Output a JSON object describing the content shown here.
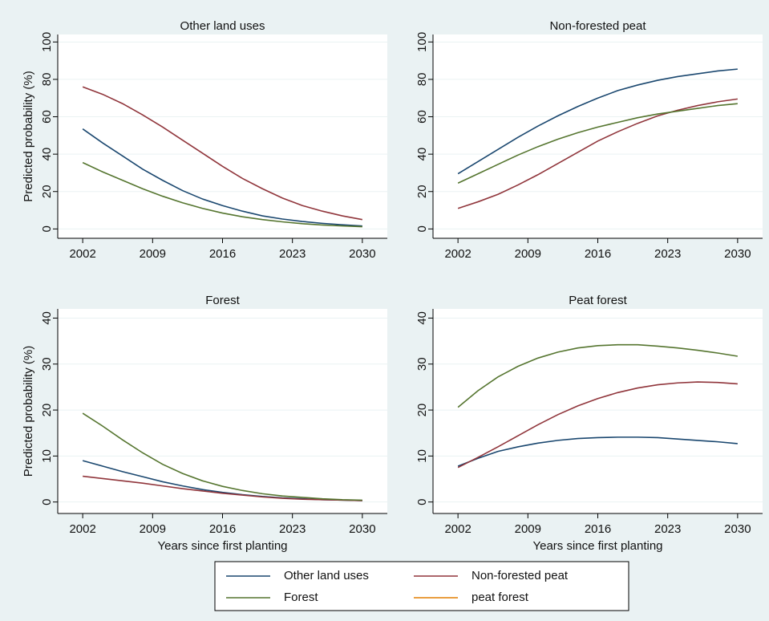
{
  "legend": [
    {
      "name": "Other land uses",
      "color": "#1a476f"
    },
    {
      "name": "Non-forested peat",
      "color": "#90353b"
    },
    {
      "name": "Forest",
      "color": "#55752f"
    },
    {
      "name": "peat forest",
      "color": "#e37e00"
    }
  ],
  "chart_data": [
    {
      "type": "line",
      "title": "Other land uses",
      "y_label": "Predicted probability (%)",
      "x": [
        2002,
        2004,
        2006,
        2008,
        2010,
        2012,
        2014,
        2016,
        2018,
        2020,
        2022,
        2024,
        2026,
        2028,
        2030
      ],
      "xlim": [
        1999.5,
        2032.5
      ],
      "xticks": [
        2002,
        2009,
        2016,
        2023,
        2030
      ],
      "ylim": [
        -5,
        104
      ],
      "yticks": [
        0,
        20,
        40,
        60,
        80,
        100
      ],
      "grid": true,
      "series": [
        {
          "name": "Other land uses",
          "values": [
            53.5,
            46,
            39,
            32,
            26,
            20.5,
            16,
            12.5,
            9.5,
            7,
            5.3,
            4,
            3,
            2.2,
            1.6
          ]
        },
        {
          "name": "Non-forested peat",
          "values": [
            76,
            72,
            67,
            61,
            54.5,
            47.5,
            40.5,
            33.5,
            27,
            21.5,
            16.5,
            12.5,
            9.5,
            7,
            5
          ]
        },
        {
          "name": "Forest",
          "values": [
            35.5,
            30.5,
            26,
            21.5,
            17.5,
            14,
            11,
            8.5,
            6.5,
            5,
            3.8,
            2.8,
            2.1,
            1.6,
            1.2
          ]
        }
      ]
    },
    {
      "type": "line",
      "title": "Non-forested peat",
      "x": [
        2002,
        2004,
        2006,
        2008,
        2010,
        2012,
        2014,
        2016,
        2018,
        2020,
        2022,
        2024,
        2026,
        2028,
        2030
      ],
      "xlim": [
        1999.5,
        2032.5
      ],
      "xticks": [
        2002,
        2009,
        2016,
        2023,
        2030
      ],
      "ylim": [
        -5,
        104
      ],
      "yticks": [
        0,
        20,
        40,
        60,
        80,
        100
      ],
      "grid": true,
      "series": [
        {
          "name": "Other land uses",
          "values": [
            29.5,
            36,
            42.5,
            49,
            55,
            60.5,
            65.5,
            70,
            74,
            77,
            79.5,
            81.5,
            83,
            84.5,
            85.5
          ]
        },
        {
          "name": "Non-forested peat",
          "values": [
            11,
            14.5,
            18.5,
            23.5,
            29,
            35,
            41,
            47,
            52,
            56.5,
            60.5,
            63.5,
            66,
            68,
            69.5
          ]
        },
        {
          "name": "Forest",
          "values": [
            24.5,
            29.5,
            34.5,
            39.5,
            44,
            48,
            51.5,
            54.5,
            57,
            59.5,
            61.5,
            63,
            64.5,
            66,
            67
          ]
        }
      ]
    },
    {
      "type": "line",
      "title": "Forest",
      "y_label": "Predicted probability (%)",
      "x_label": "Years since first planting",
      "x": [
        2002,
        2004,
        2006,
        2008,
        2010,
        2012,
        2014,
        2016,
        2018,
        2020,
        2022,
        2024,
        2026,
        2028,
        2030
      ],
      "xlim": [
        1999.5,
        2032.5
      ],
      "xticks": [
        2002,
        2009,
        2016,
        2023,
        2030
      ],
      "ylim": [
        -2.5,
        42
      ],
      "yticks": [
        0,
        10,
        20,
        30,
        40
      ],
      "grid": true,
      "series": [
        {
          "name": "Other land uses",
          "values": [
            9,
            7.8,
            6.6,
            5.5,
            4.4,
            3.5,
            2.7,
            2.1,
            1.6,
            1.2,
            0.9,
            0.7,
            0.5,
            0.4,
            0.3
          ]
        },
        {
          "name": "Non-forested peat",
          "values": [
            5.6,
            5.1,
            4.6,
            4.1,
            3.5,
            2.9,
            2.4,
            1.9,
            1.5,
            1.1,
            0.8,
            0.6,
            0.5,
            0.4,
            0.3
          ]
        },
        {
          "name": "Forest",
          "values": [
            19.3,
            16.5,
            13.5,
            10.7,
            8.2,
            6.2,
            4.6,
            3.4,
            2.5,
            1.8,
            1.3,
            1,
            0.7,
            0.5,
            0.4
          ]
        }
      ]
    },
    {
      "type": "line",
      "title": "Peat forest",
      "x_label": "Years since first planting",
      "x": [
        2002,
        2004,
        2006,
        2008,
        2010,
        2012,
        2014,
        2016,
        2018,
        2020,
        2022,
        2024,
        2026,
        2028,
        2030
      ],
      "xlim": [
        1999.5,
        2032.5
      ],
      "xticks": [
        2002,
        2009,
        2016,
        2023,
        2030
      ],
      "ylim": [
        -2.5,
        42
      ],
      "yticks": [
        0,
        10,
        20,
        30,
        40
      ],
      "grid": true,
      "series": [
        {
          "name": "Other land uses",
          "values": [
            7.8,
            9.5,
            11,
            12,
            12.8,
            13.4,
            13.8,
            14,
            14.1,
            14.1,
            14,
            13.7,
            13.4,
            13.1,
            12.7
          ]
        },
        {
          "name": "Non-forested peat",
          "values": [
            7.5,
            9.7,
            12,
            14.4,
            16.8,
            19,
            20.9,
            22.5,
            23.8,
            24.8,
            25.5,
            25.9,
            26.1,
            26,
            25.7
          ]
        },
        {
          "name": "Forest",
          "values": [
            20.6,
            24.2,
            27.2,
            29.5,
            31.3,
            32.6,
            33.5,
            34,
            34.2,
            34.2,
            33.9,
            33.5,
            33,
            32.4,
            31.7
          ]
        }
      ]
    }
  ]
}
